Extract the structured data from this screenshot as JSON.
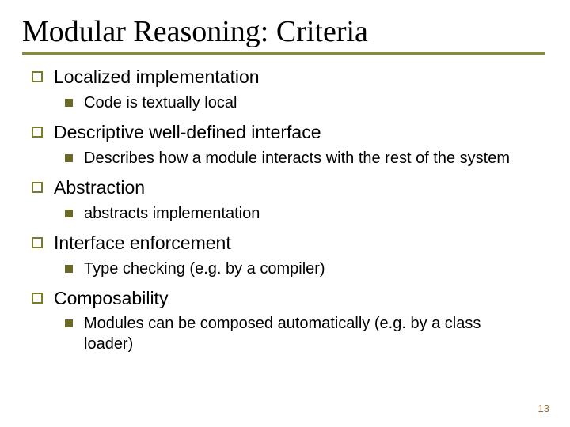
{
  "title": "Modular Reasoning: Criteria",
  "items": [
    {
      "label": "Localized implementation",
      "sub": [
        {
          "label": "Code is textually local"
        }
      ]
    },
    {
      "label": "Descriptive well-defined interface",
      "sub": [
        {
          "label": "Describes how a module interacts with the rest of the system"
        }
      ]
    },
    {
      "label": "Abstraction",
      "sub": [
        {
          "label": "abstracts implementation"
        }
      ]
    },
    {
      "label": "Interface enforcement",
      "sub": [
        {
          "label": "Type checking (e.g. by a compiler)"
        }
      ]
    },
    {
      "label": "Composability",
      "sub": [
        {
          "label": "Modules can be composed automatically (e.g. by a class loader)"
        }
      ]
    }
  ],
  "pageNumber": "13",
  "colors": {
    "underline": "#8a8a3a",
    "bulletL1Border": "#7a7a2e",
    "bulletL2Fill": "#6a6a28",
    "pageNumber": "#9a6b3a",
    "text": "#000000",
    "background": "#ffffff"
  },
  "fonts": {
    "titleFamily": "Georgia",
    "bodyFamily": "Verdana",
    "titleSize": 38,
    "l1Size": 23,
    "l2Size": 20,
    "pageNumSize": 13
  }
}
